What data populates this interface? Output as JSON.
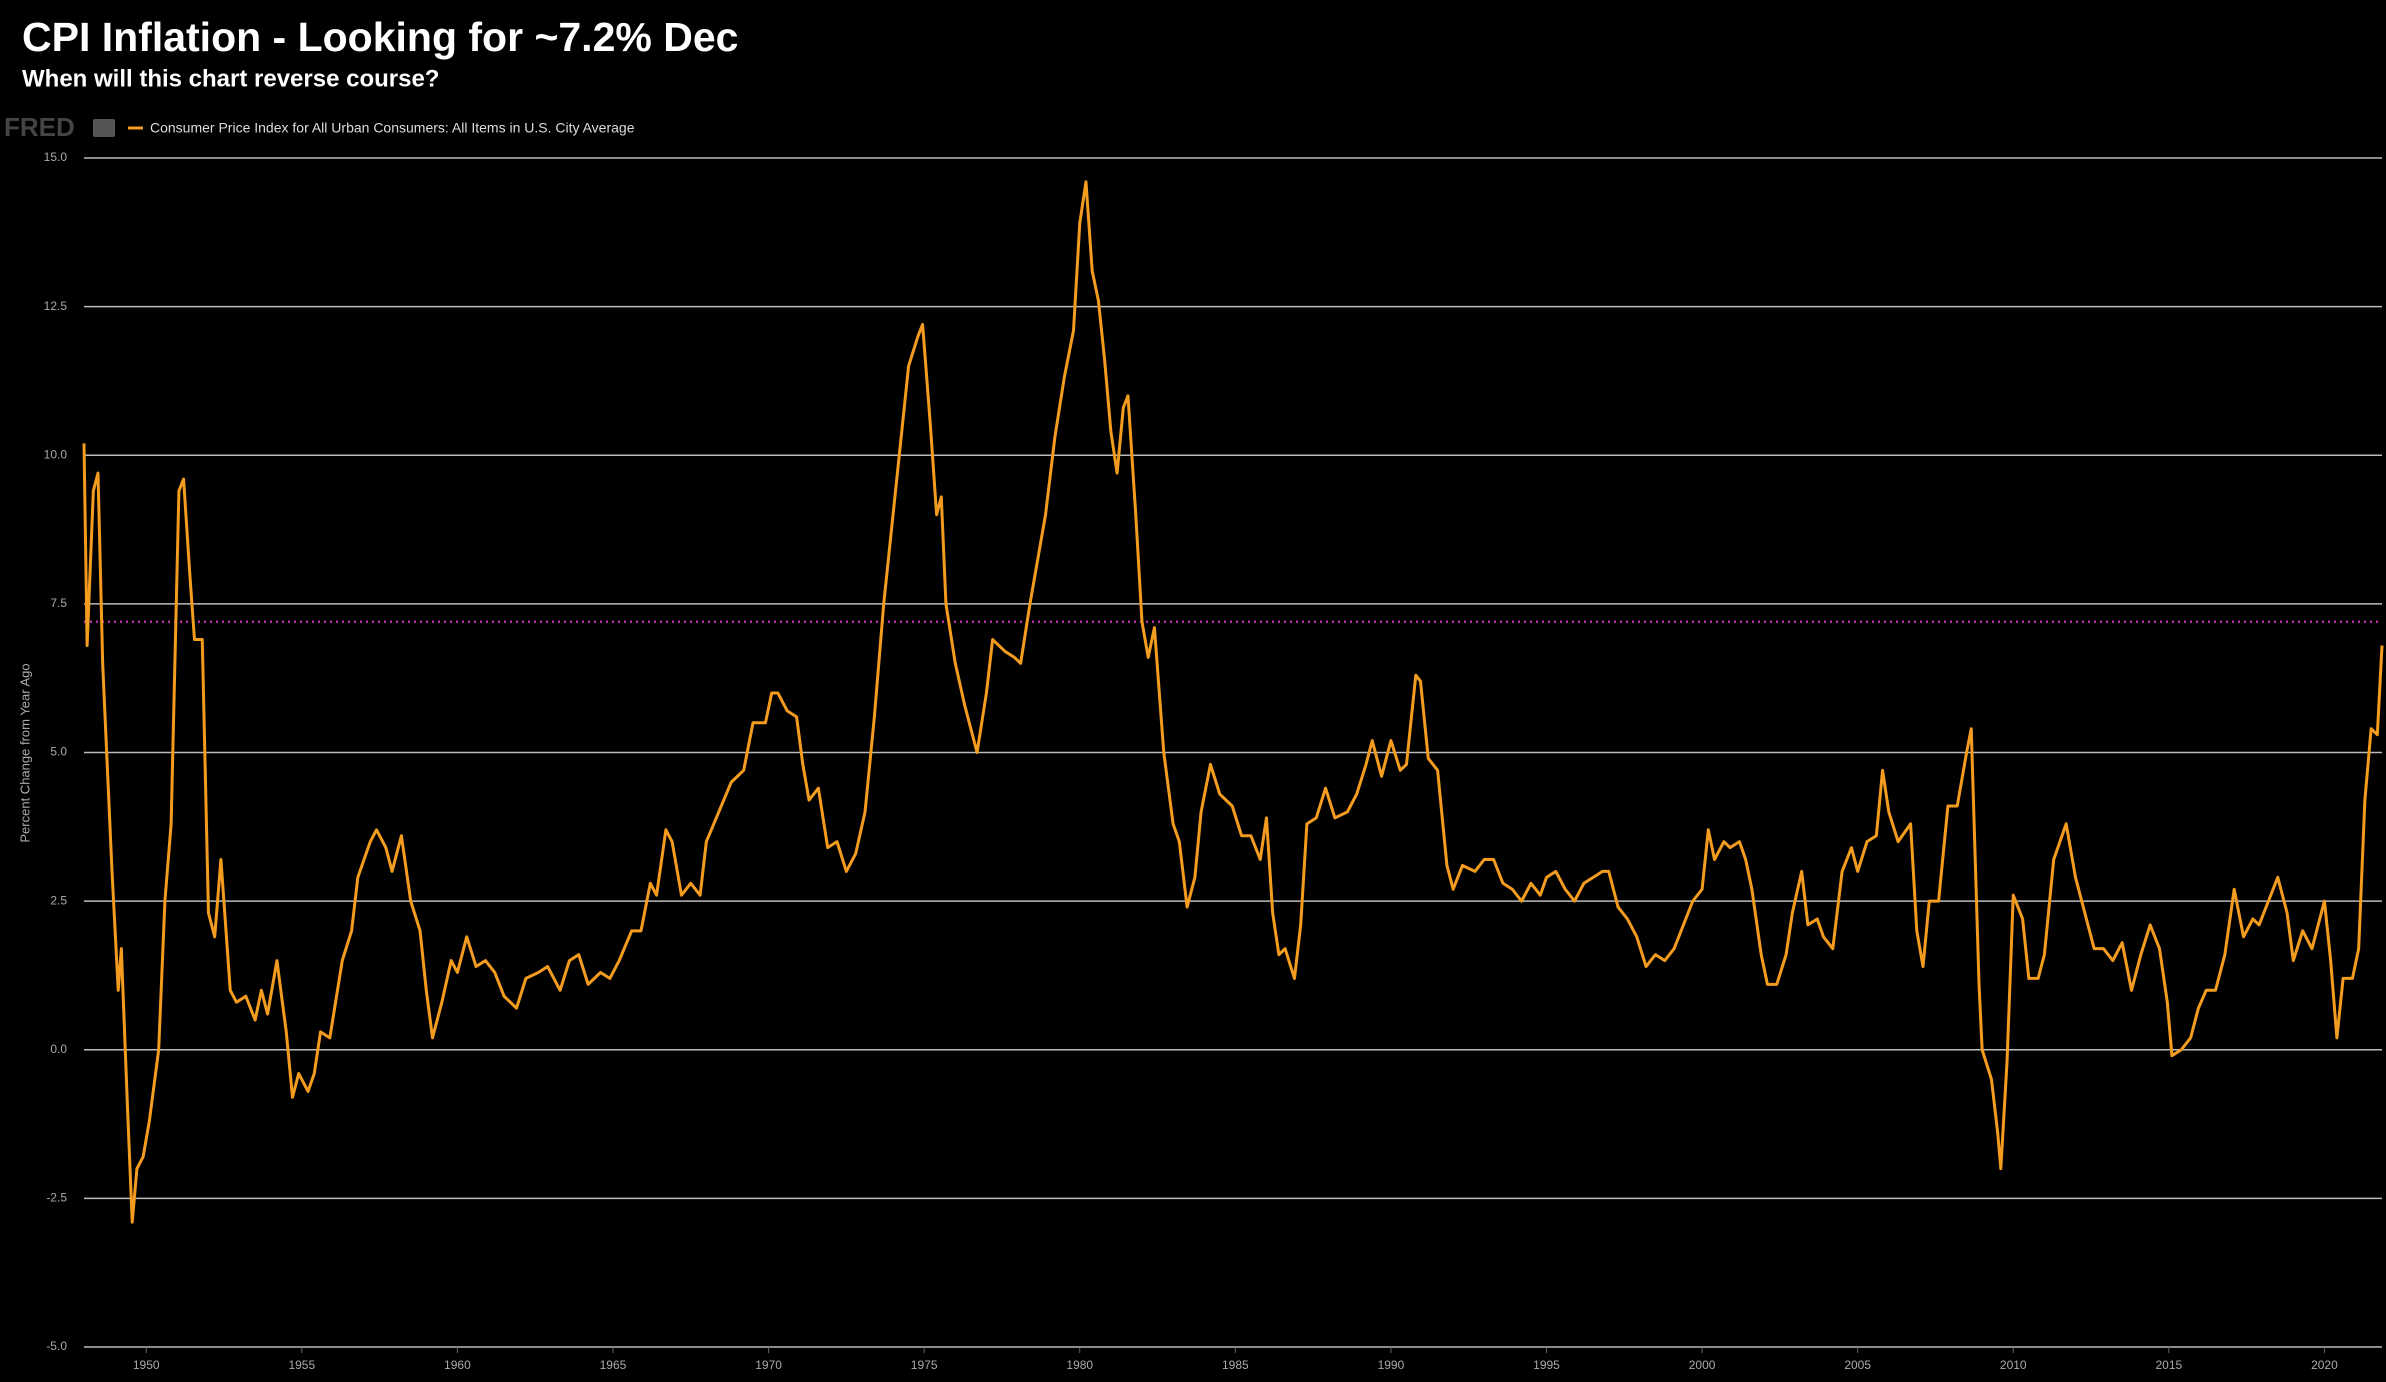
{
  "chart_data": {
    "type": "line",
    "title": "CPI Inflation - Looking for ~7.2% Dec",
    "subtitle": "When will this chart reverse course?",
    "source_logo": "FRED",
    "ylabel": "Percent Change from Year Ago",
    "x": [
      1948.0,
      1948.1,
      1948.3,
      1948.45,
      1948.6,
      1948.9,
      1949.1,
      1949.2,
      1949.4,
      1949.55,
      1949.7,
      1949.9,
      1950.1,
      1950.4,
      1950.6,
      1950.8,
      1951.05,
      1951.2,
      1951.4,
      1951.55,
      1951.8,
      1952.0,
      1952.2,
      1952.4,
      1952.7,
      1952.9,
      1953.2,
      1953.5,
      1953.7,
      1953.9,
      1954.2,
      1954.5,
      1954.7,
      1954.9,
      1955.2,
      1955.4,
      1955.6,
      1955.9,
      1956.3,
      1956.6,
      1956.8,
      1957.2,
      1957.4,
      1957.7,
      1957.9,
      1958.2,
      1958.5,
      1958.8,
      1959.0,
      1959.2,
      1959.5,
      1959.8,
      1960.0,
      1960.3,
      1960.6,
      1960.9,
      1961.2,
      1961.5,
      1961.9,
      1962.2,
      1962.6,
      1962.9,
      1963.3,
      1963.6,
      1963.9,
      1964.2,
      1964.6,
      1964.9,
      1965.2,
      1965.6,
      1965.9,
      1966.2,
      1966.4,
      1966.7,
      1966.9,
      1967.2,
      1967.5,
      1967.8,
      1968.0,
      1968.4,
      1968.8,
      1969.2,
      1969.5,
      1969.9,
      1970.1,
      1970.3,
      1970.6,
      1970.9,
      1971.1,
      1971.3,
      1971.6,
      1971.9,
      1972.2,
      1972.5,
      1972.8,
      1973.1,
      1973.4,
      1973.7,
      1973.9,
      1974.2,
      1974.5,
      1974.8,
      1974.95,
      1975.2,
      1975.4,
      1975.55,
      1975.7,
      1976.0,
      1976.3,
      1976.5,
      1976.7,
      1977.0,
      1977.2,
      1977.6,
      1977.9,
      1978.1,
      1978.4,
      1978.7,
      1978.9,
      1979.2,
      1979.5,
      1979.8,
      1980.0,
      1980.2,
      1980.4,
      1980.6,
      1980.8,
      1981.0,
      1981.2,
      1981.4,
      1981.55,
      1981.8,
      1982.0,
      1982.2,
      1982.4,
      1982.7,
      1983.0,
      1983.2,
      1983.45,
      1983.7,
      1983.9,
      1984.2,
      1984.5,
      1984.9,
      1985.2,
      1985.5,
      1985.8,
      1986.0,
      1986.2,
      1986.4,
      1986.6,
      1986.9,
      1987.1,
      1987.3,
      1987.6,
      1987.9,
      1988.2,
      1988.6,
      1988.9,
      1989.2,
      1989.4,
      1989.7,
      1990.0,
      1990.3,
      1990.5,
      1990.8,
      1990.95,
      1991.2,
      1991.5,
      1991.8,
      1992.0,
      1992.3,
      1992.7,
      1993.0,
      1993.3,
      1993.6,
      1993.9,
      1994.2,
      1994.5,
      1994.8,
      1995.0,
      1995.3,
      1995.6,
      1995.9,
      1996.2,
      1996.5,
      1996.8,
      1997.0,
      1997.3,
      1997.6,
      1997.9,
      1998.2,
      1998.5,
      1998.8,
      1999.1,
      1999.4,
      1999.7,
      2000.0,
      2000.2,
      2000.4,
      2000.7,
      2000.9,
      2001.2,
      2001.4,
      2001.6,
      2001.9,
      2002.1,
      2002.4,
      2002.7,
      2002.9,
      2003.2,
      2003.4,
      2003.7,
      2003.9,
      2004.2,
      2004.5,
      2004.8,
      2005.0,
      2005.3,
      2005.6,
      2005.8,
      2006.0,
      2006.3,
      2006.7,
      2006.9,
      2007.1,
      2007.3,
      2007.6,
      2007.9,
      2008.2,
      2008.5,
      2008.65,
      2008.9,
      2009.0,
      2009.3,
      2009.5,
      2009.6,
      2009.8,
      2010.0,
      2010.3,
      2010.5,
      2010.8,
      2011.0,
      2011.3,
      2011.7,
      2012.0,
      2012.3,
      2012.6,
      2012.9,
      2013.2,
      2013.5,
      2013.8,
      2014.1,
      2014.4,
      2014.7,
      2014.95,
      2015.1,
      2015.4,
      2015.7,
      2015.95,
      2016.2,
      2016.5,
      2016.8,
      2017.1,
      2017.4,
      2017.7,
      2017.9,
      2018.2,
      2018.5,
      2018.8,
      2019.0,
      2019.3,
      2019.6,
      2019.9,
      2020.0,
      2020.2,
      2020.4,
      2020.6,
      2020.9,
      2021.1,
      2021.3,
      2021.5,
      2021.7,
      2021.85
    ],
    "series": [
      {
        "name": "Consumer Price Index for All Urban Consumers: All Items in U.S. City Average",
        "color": "#f39c1f",
        "values": [
          10.2,
          6.8,
          9.4,
          9.7,
          6.5,
          3.0,
          1.0,
          1.7,
          -1.0,
          -2.9,
          -2.0,
          -1.8,
          -1.2,
          0.0,
          2.5,
          3.8,
          9.4,
          9.6,
          8.0,
          6.9,
          6.9,
          2.3,
          1.9,
          3.2,
          1.0,
          0.8,
          0.9,
          0.5,
          1.0,
          0.6,
          1.5,
          0.3,
          -0.8,
          -0.4,
          -0.7,
          -0.4,
          0.3,
          0.2,
          1.5,
          2.0,
          2.9,
          3.5,
          3.7,
          3.4,
          3.0,
          3.6,
          2.5,
          2.0,
          1.0,
          0.2,
          0.8,
          1.5,
          1.3,
          1.9,
          1.4,
          1.5,
          1.3,
          0.9,
          0.7,
          1.2,
          1.3,
          1.4,
          1.0,
          1.5,
          1.6,
          1.1,
          1.3,
          1.2,
          1.5,
          2.0,
          2.0,
          2.8,
          2.6,
          3.7,
          3.5,
          2.6,
          2.8,
          2.6,
          3.5,
          4.0,
          4.5,
          4.7,
          5.5,
          5.5,
          6.0,
          6.0,
          5.7,
          5.6,
          4.8,
          4.2,
          4.4,
          3.4,
          3.5,
          3.0,
          3.3,
          4.0,
          5.6,
          7.5,
          8.5,
          10.0,
          11.5,
          12.0,
          12.2,
          10.5,
          9.0,
          9.3,
          7.5,
          6.5,
          5.8,
          5.4,
          5.0,
          6.0,
          6.9,
          6.7,
          6.6,
          6.5,
          7.5,
          8.4,
          9.0,
          10.3,
          11.3,
          12.1,
          13.9,
          14.6,
          13.1,
          12.6,
          11.6,
          10.4,
          9.7,
          10.8,
          11.0,
          9.0,
          7.2,
          6.6,
          7.1,
          5.0,
          3.8,
          3.5,
          2.4,
          2.9,
          4.0,
          4.8,
          4.3,
          4.1,
          3.6,
          3.6,
          3.2,
          3.9,
          2.3,
          1.6,
          1.7,
          1.2,
          2.1,
          3.8,
          3.9,
          4.4,
          3.9,
          4.0,
          4.3,
          4.8,
          5.2,
          4.6,
          5.2,
          4.7,
          4.8,
          6.3,
          6.2,
          4.9,
          4.7,
          3.1,
          2.7,
          3.1,
          3.0,
          3.2,
          3.2,
          2.8,
          2.7,
          2.5,
          2.8,
          2.6,
          2.9,
          3.0,
          2.7,
          2.5,
          2.8,
          2.9,
          3.0,
          3.0,
          2.4,
          2.2,
          1.9,
          1.4,
          1.6,
          1.5,
          1.7,
          2.1,
          2.5,
          2.7,
          3.7,
          3.2,
          3.5,
          3.4,
          3.5,
          3.2,
          2.7,
          1.6,
          1.1,
          1.1,
          1.6,
          2.3,
          3.0,
          2.1,
          2.2,
          1.9,
          1.7,
          3.0,
          3.4,
          3.0,
          3.5,
          3.6,
          4.7,
          4.0,
          3.5,
          3.8,
          2.0,
          1.4,
          2.5,
          2.5,
          4.1,
          4.1,
          5.0,
          5.4,
          1.1,
          0.0,
          -0.5,
          -1.4,
          -2.0,
          -0.2,
          2.6,
          2.2,
          1.2,
          1.2,
          1.6,
          3.2,
          3.8,
          2.9,
          2.3,
          1.7,
          1.7,
          1.5,
          1.8,
          1.0,
          1.6,
          2.1,
          1.7,
          0.8,
          -0.1,
          0.0,
          0.2,
          0.7,
          1.0,
          1.0,
          1.6,
          2.7,
          1.9,
          2.2,
          2.1,
          2.5,
          2.9,
          2.3,
          1.5,
          2.0,
          1.7,
          2.3,
          2.5,
          1.5,
          0.2,
          1.2,
          1.2,
          1.7,
          4.2,
          5.4,
          5.3,
          6.8
        ]
      }
    ],
    "reference_line": {
      "value": 7.2,
      "color": "#b62fa8"
    },
    "xlim": [
      1948.0,
      2021.85
    ],
    "xticks": [
      1950,
      1955,
      1960,
      1965,
      1970,
      1975,
      1980,
      1985,
      1990,
      1995,
      2000,
      2005,
      2010,
      2015,
      2020
    ],
    "ylim": [
      -5,
      15
    ],
    "yticks": [
      {
        "value": -5,
        "label": "-5.0"
      },
      -2.5,
      {
        "value": 0,
        "label": "0.0"
      },
      2.5,
      {
        "value": 5,
        "label": "5.0"
      },
      7.5,
      {
        "value": 10,
        "label": "10.0"
      },
      12.5,
      {
        "value": 15,
        "label": "15.0"
      }
    ],
    "grid": true
  }
}
